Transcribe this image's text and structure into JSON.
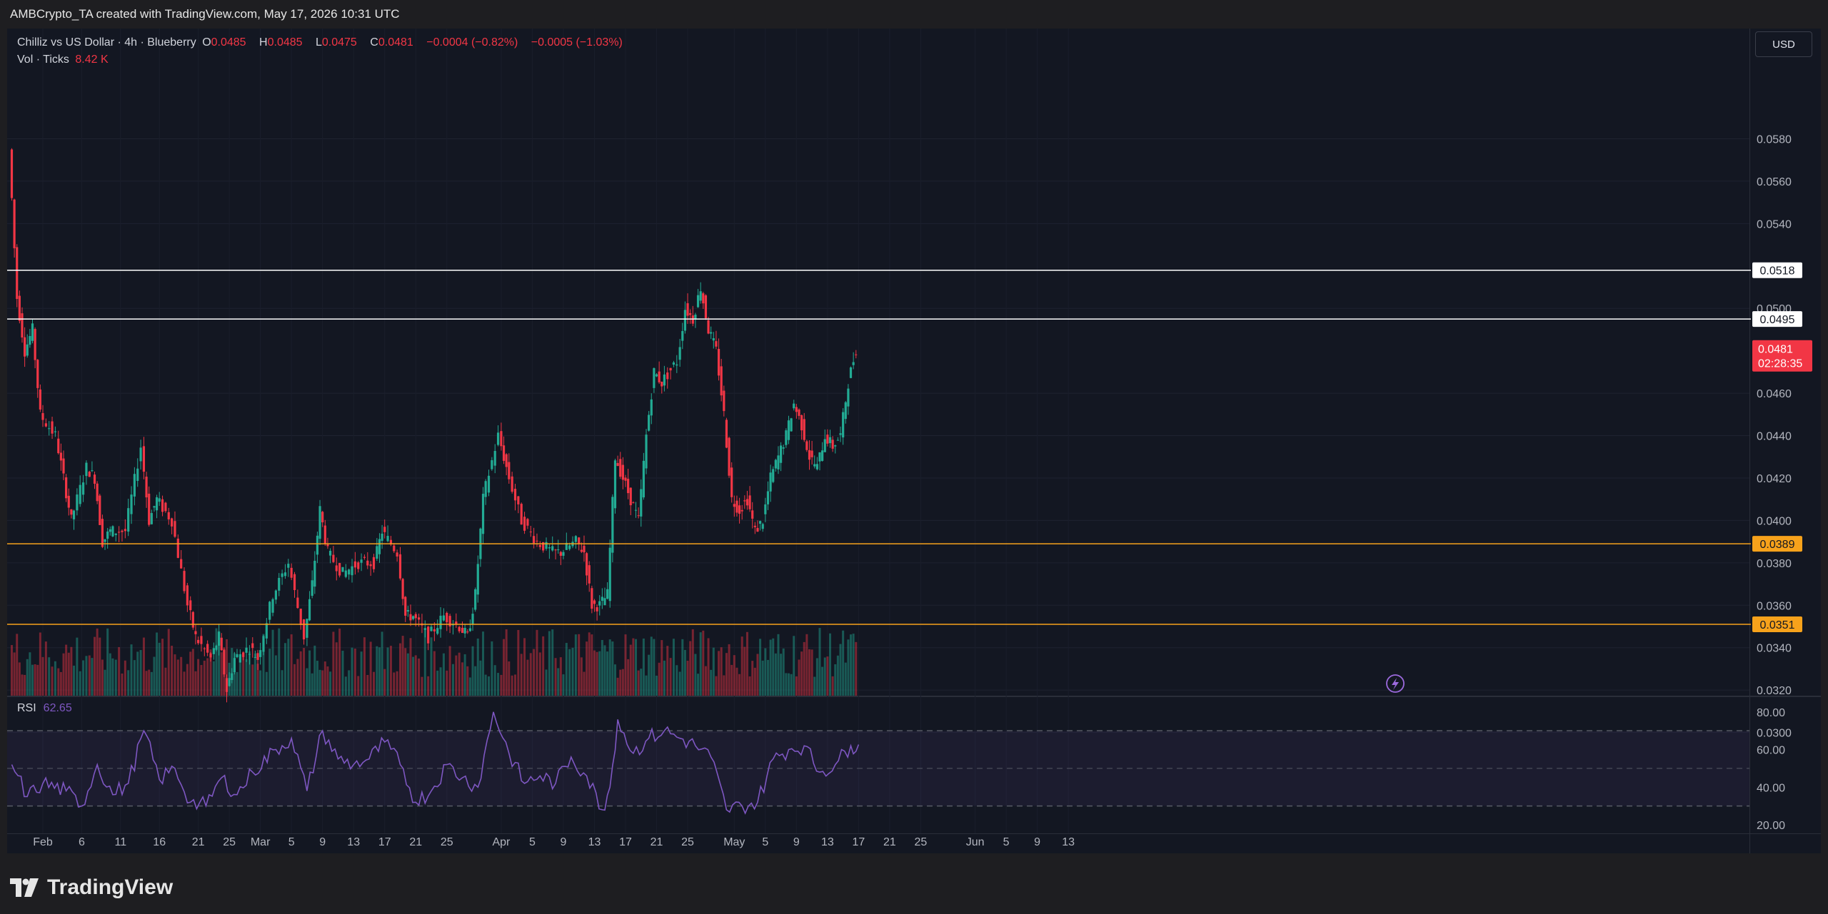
{
  "header": {
    "credit": "AMBCrypto_TA created with TradingView.com, May 17, 2026 10:31 UTC"
  },
  "legend": {
    "symbol": "Chilliz vs US Dollar · 4h · Blueberry",
    "open_label": "O",
    "open": "0.0485",
    "high_label": "H",
    "high": "0.0485",
    "low_label": "L",
    "low": "0.0475",
    "close_label": "C",
    "close": "0.0481",
    "change": "−0.0004 (−0.82%)",
    "change2": "−0.0005 (−1.03%)",
    "vol_label": "Vol · Ticks",
    "vol_value": "8.42 K"
  },
  "currency_button": "USD",
  "rsi": {
    "label": "RSI",
    "value": "62.65"
  },
  "footer": {
    "logo_text": "TradingView"
  },
  "colors": {
    "up": "#22ab94",
    "down": "#f23645",
    "white_level": "#ffffff",
    "orange_level": "#f7a21b",
    "rsi_line": "#7e57c2",
    "background": "#131722"
  },
  "chart_data": {
    "type": "candlestick",
    "title": "Chilliz vs US Dollar · 4h · Blueberry",
    "price_axis": {
      "ticks": [
        "0.0580",
        "0.0560",
        "0.0540",
        "0.0500",
        "0.0460",
        "0.0440",
        "0.0420",
        "0.0400",
        "0.0380",
        "0.0360",
        "0.0340",
        "0.0320",
        "0.0300"
      ],
      "ylim": [
        0.0295,
        0.0588
      ]
    },
    "time_axis": {
      "ticks": [
        "Feb",
        "6",
        "11",
        "16",
        "21",
        "25",
        "Mar",
        "5",
        "9",
        "13",
        "17",
        "21",
        "25",
        "Apr",
        "5",
        "9",
        "13",
        "17",
        "21",
        "25",
        "May",
        "5",
        "9",
        "13",
        "17",
        "21",
        "25",
        "Jun",
        "5",
        "9",
        "13"
      ]
    },
    "horizontal_levels": [
      {
        "value": "0.0518",
        "color": "white"
      },
      {
        "value": "0.0495",
        "color": "white"
      },
      {
        "value": "0.0389",
        "color": "orange"
      },
      {
        "value": "0.0351",
        "color": "orange"
      }
    ],
    "current_price": {
      "value": "0.0481",
      "countdown": "02:28:35"
    },
    "price_path": [
      {
        "date": "Jan 28",
        "price": 0.0575
      },
      {
        "date": "Jan 29",
        "price": 0.0505
      },
      {
        "date": "Jan 30",
        "price": 0.048
      },
      {
        "date": "Jan 31",
        "price": 0.049
      },
      {
        "date": "Feb 1",
        "price": 0.045
      },
      {
        "date": "Feb 3",
        "price": 0.044
      },
      {
        "date": "Feb 4",
        "price": 0.042
      },
      {
        "date": "Feb 5",
        "price": 0.04
      },
      {
        "date": "Feb 7",
        "price": 0.0425
      },
      {
        "date": "Feb 8",
        "price": 0.042
      },
      {
        "date": "Feb 9",
        "price": 0.039
      },
      {
        "date": "Feb 10",
        "price": 0.0395
      },
      {
        "date": "Feb 12",
        "price": 0.0395
      },
      {
        "date": "Feb 14",
        "price": 0.0435
      },
      {
        "date": "Feb 15",
        "price": 0.04
      },
      {
        "date": "Feb 16",
        "price": 0.041
      },
      {
        "date": "Feb 18",
        "price": 0.04
      },
      {
        "date": "Feb 20",
        "price": 0.036
      },
      {
        "date": "Feb 21",
        "price": 0.0345
      },
      {
        "date": "Feb 23",
        "price": 0.0335
      },
      {
        "date": "Feb 24",
        "price": 0.0345
      },
      {
        "date": "Feb 25",
        "price": 0.032
      },
      {
        "date": "Feb 26",
        "price": 0.0335
      },
      {
        "date": "Feb 28",
        "price": 0.034
      },
      {
        "date": "Mar 1",
        "price": 0.0335
      },
      {
        "date": "Mar 3",
        "price": 0.0365
      },
      {
        "date": "Mar 5",
        "price": 0.038
      },
      {
        "date": "Mar 7",
        "price": 0.0345
      },
      {
        "date": "Mar 8",
        "price": 0.037
      },
      {
        "date": "Mar 9",
        "price": 0.0405
      },
      {
        "date": "Mar 10",
        "price": 0.0385
      },
      {
        "date": "Mar 12",
        "price": 0.0375
      },
      {
        "date": "Mar 14",
        "price": 0.038
      },
      {
        "date": "Mar 16",
        "price": 0.038
      },
      {
        "date": "Mar 17",
        "price": 0.0395
      },
      {
        "date": "Mar 19",
        "price": 0.0385
      },
      {
        "date": "Mar 20",
        "price": 0.0355
      },
      {
        "date": "Mar 21",
        "price": 0.0355
      },
      {
        "date": "Mar 23",
        "price": 0.0345
      },
      {
        "date": "Mar 25",
        "price": 0.0355
      },
      {
        "date": "Mar 27",
        "price": 0.035
      },
      {
        "date": "Mar 28",
        "price": 0.0345
      },
      {
        "date": "Mar 29",
        "price": 0.0365
      },
      {
        "date": "Mar 30",
        "price": 0.041
      },
      {
        "date": "Apr 1",
        "price": 0.044
      },
      {
        "date": "Apr 2",
        "price": 0.0425
      },
      {
        "date": "Apr 4",
        "price": 0.04
      },
      {
        "date": "Apr 6",
        "price": 0.039
      },
      {
        "date": "Apr 8",
        "price": 0.0385
      },
      {
        "date": "Apr 9",
        "price": 0.0385
      },
      {
        "date": "Apr 11",
        "price": 0.039
      },
      {
        "date": "Apr 12",
        "price": 0.0385
      },
      {
        "date": "Apr 13",
        "price": 0.036
      },
      {
        "date": "Apr 14",
        "price": 0.036
      },
      {
        "date": "Apr 15",
        "price": 0.0365
      },
      {
        "date": "Apr 16",
        "price": 0.043
      },
      {
        "date": "Apr 17",
        "price": 0.042
      },
      {
        "date": "Apr 18",
        "price": 0.041
      },
      {
        "date": "Apr 19",
        "price": 0.04
      },
      {
        "date": "Apr 20",
        "price": 0.044
      },
      {
        "date": "Apr 21",
        "price": 0.047
      },
      {
        "date": "Apr 22",
        "price": 0.0465
      },
      {
        "date": "Apr 24",
        "price": 0.0475
      },
      {
        "date": "Apr 25",
        "price": 0.05
      },
      {
        "date": "Apr 26",
        "price": 0.0495
      },
      {
        "date": "Apr 27",
        "price": 0.051
      },
      {
        "date": "Apr 28",
        "price": 0.049
      },
      {
        "date": "Apr 29",
        "price": 0.048
      },
      {
        "date": "Apr 30",
        "price": 0.045
      },
      {
        "date": "May 1",
        "price": 0.041
      },
      {
        "date": "May 2",
        "price": 0.0405
      },
      {
        "date": "May 3",
        "price": 0.041
      },
      {
        "date": "May 4",
        "price": 0.0395
      },
      {
        "date": "May 5",
        "price": 0.04
      },
      {
        "date": "May 6",
        "price": 0.042
      },
      {
        "date": "May 7",
        "price": 0.043
      },
      {
        "date": "May 8",
        "price": 0.044
      },
      {
        "date": "May 9",
        "price": 0.0455
      },
      {
        "date": "May 10",
        "price": 0.0445
      },
      {
        "date": "May 11",
        "price": 0.043
      },
      {
        "date": "May 12",
        "price": 0.0425
      },
      {
        "date": "May 13",
        "price": 0.044
      },
      {
        "date": "May 14",
        "price": 0.0435
      },
      {
        "date": "May 15",
        "price": 0.044
      },
      {
        "date": "May 16",
        "price": 0.0465
      },
      {
        "date": "May 17",
        "price": 0.0481
      }
    ],
    "rsi_axis": {
      "ticks": [
        "80.00",
        "60.00",
        "40.00",
        "20.00"
      ],
      "ylim": [
        18,
        85
      ],
      "bands": [
        70,
        50,
        30
      ]
    },
    "rsi_path": [
      {
        "date": "Jan 28",
        "value": 52
      },
      {
        "date": "Jan 30",
        "value": 35
      },
      {
        "date": "Feb 1",
        "value": 42
      },
      {
        "date": "Feb 4",
        "value": 38
      },
      {
        "date": "Feb 6",
        "value": 30
      },
      {
        "date": "Feb 8",
        "value": 52
      },
      {
        "date": "Feb 10",
        "value": 36
      },
      {
        "date": "Feb 12",
        "value": 42
      },
      {
        "date": "Feb 14",
        "value": 70
      },
      {
        "date": "Feb 16",
        "value": 44
      },
      {
        "date": "Feb 18",
        "value": 50
      },
      {
        "date": "Feb 20",
        "value": 32
      },
      {
        "date": "Feb 22",
        "value": 30
      },
      {
        "date": "Feb 24",
        "value": 45
      },
      {
        "date": "Feb 26",
        "value": 36
      },
      {
        "date": "Feb 28",
        "value": 48
      },
      {
        "date": "Mar 3",
        "value": 60
      },
      {
        "date": "Mar 5",
        "value": 66
      },
      {
        "date": "Mar 7",
        "value": 38
      },
      {
        "date": "Mar 9",
        "value": 70
      },
      {
        "date": "Mar 11",
        "value": 55
      },
      {
        "date": "Mar 13",
        "value": 52
      },
      {
        "date": "Mar 15",
        "value": 55
      },
      {
        "date": "Mar 17",
        "value": 64
      },
      {
        "date": "Mar 19",
        "value": 52
      },
      {
        "date": "Mar 21",
        "value": 32
      },
      {
        "date": "Mar 23",
        "value": 38
      },
      {
        "date": "Mar 25",
        "value": 52
      },
      {
        "date": "Mar 27",
        "value": 45
      },
      {
        "date": "Mar 29",
        "value": 40
      },
      {
        "date": "Mar 31",
        "value": 80
      },
      {
        "date": "Apr 2",
        "value": 58
      },
      {
        "date": "Apr 4",
        "value": 42
      },
      {
        "date": "Apr 6",
        "value": 46
      },
      {
        "date": "Apr 8",
        "value": 42
      },
      {
        "date": "Apr 10",
        "value": 56
      },
      {
        "date": "Apr 12",
        "value": 46
      },
      {
        "date": "Apr 14",
        "value": 28
      },
      {
        "date": "Apr 15",
        "value": 40
      },
      {
        "date": "Apr 16",
        "value": 76
      },
      {
        "date": "Apr 18",
        "value": 58
      },
      {
        "date": "Apr 20",
        "value": 66
      },
      {
        "date": "Apr 22",
        "value": 70
      },
      {
        "date": "Apr 24",
        "value": 66
      },
      {
        "date": "Apr 26",
        "value": 62
      },
      {
        "date": "Apr 28",
        "value": 56
      },
      {
        "date": "Apr 30",
        "value": 28
      },
      {
        "date": "May 2",
        "value": 30
      },
      {
        "date": "May 4",
        "value": 32
      },
      {
        "date": "May 6",
        "value": 55
      },
      {
        "date": "May 8",
        "value": 60
      },
      {
        "date": "May 10",
        "value": 62
      },
      {
        "date": "May 12",
        "value": 48
      },
      {
        "date": "May 14",
        "value": 52
      },
      {
        "date": "May 16",
        "value": 62
      },
      {
        "date": "May 17",
        "value": 62.65
      }
    ]
  }
}
